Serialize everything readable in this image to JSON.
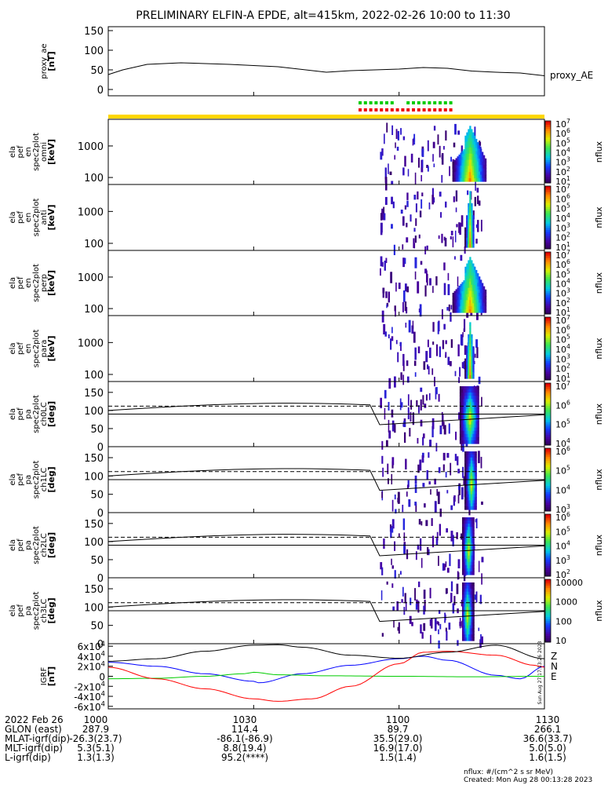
{
  "title": "PRELIMINARY ELFIN-A EPDE, alt=415km, 2022-02-26 10:00 to 11:30",
  "chart_data": [
    {
      "type": "line",
      "id": "proxy_ae",
      "ylabel": [
        "proxy_ae",
        "[nT]"
      ],
      "series_label": "proxy_AE",
      "yticks": [
        "0",
        "50",
        "100",
        "150"
      ],
      "ylim": [
        0,
        160
      ],
      "x_minutes": [
        0,
        3,
        8,
        15,
        25,
        35,
        45,
        50,
        55,
        60,
        65,
        70,
        75,
        80,
        85,
        90
      ],
      "values": [
        38,
        50,
        64,
        68,
        64,
        58,
        44,
        48,
        50,
        52,
        56,
        54,
        47,
        44,
        42,
        35
      ]
    },
    {
      "type": "heatmap",
      "id": "spec_en_omni",
      "ylabel": [
        "ela",
        "pef",
        "en",
        "spec2plot",
        "omni",
        "[keV]"
      ],
      "yticks": [
        "100",
        "1000"
      ],
      "ylog": true,
      "ylim": [
        60,
        7000
      ],
      "colorbar_label": "nflux",
      "colorbar_ticks": [
        "10^1",
        "10^2",
        "10^3",
        "10^4",
        "10^5",
        "10^6",
        "10^7"
      ],
      "blob": {
        "x_min": [
          71,
          78
        ],
        "peak_min": 74.5,
        "curve": true
      }
    },
    {
      "type": "heatmap",
      "id": "spec_en_anti",
      "ylabel": [
        "ela",
        "pef",
        "en",
        "spec2plot",
        "anti",
        "[keV]"
      ],
      "yticks": [
        "100",
        "1000"
      ],
      "ylog": true,
      "ylim": [
        60,
        7000
      ],
      "colorbar_label": "nflux",
      "colorbar_ticks": [
        "10^1",
        "10^2",
        "10^3",
        "10^4",
        "10^5",
        "10^6",
        "10^7"
      ],
      "blob": {
        "x_min": [
          73.5,
          75.5
        ],
        "peak_min": 74.5,
        "curve": false
      }
    },
    {
      "type": "heatmap",
      "id": "spec_en_perp",
      "ylabel": [
        "ela",
        "pef",
        "en",
        "spec2plot",
        "perp",
        "[keV]"
      ],
      "yticks": [
        "100",
        "1000"
      ],
      "ylog": true,
      "ylim": [
        60,
        7000
      ],
      "colorbar_label": "nflux",
      "colorbar_ticks": [
        "10^1",
        "10^2",
        "10^3",
        "10^4",
        "10^5",
        "10^6",
        "10^7"
      ],
      "blob": {
        "x_min": [
          71,
          78
        ],
        "peak_min": 74.5,
        "curve": true
      }
    },
    {
      "type": "heatmap",
      "id": "spec_en_para",
      "ylabel": [
        "ela",
        "pef",
        "en",
        "spec2plot",
        "para",
        "[keV]"
      ],
      "yticks": [
        "100",
        "1000"
      ],
      "ylog": true,
      "ylim": [
        60,
        7000
      ],
      "colorbar_label": "nflux",
      "colorbar_ticks": [
        "10^1",
        "10^2",
        "10^3",
        "10^4",
        "10^5",
        "10^6",
        "10^7"
      ],
      "blob": {
        "x_min": [
          73.5,
          75.5
        ],
        "peak_min": 74.5,
        "curve": false
      }
    },
    {
      "type": "heatmap",
      "id": "spec_pa_ch0",
      "ylabel": [
        "ela",
        "pef",
        "pa",
        "spec2plot",
        "ch0LC",
        "[deg]"
      ],
      "yticks": [
        "0",
        "50",
        "100",
        "150"
      ],
      "ylim": [
        0,
        180
      ],
      "colorbar_label": "nflux",
      "colorbar_ticks": [
        "10^4",
        "10^5",
        "10^6",
        "10^7"
      ],
      "blob": {
        "x_min": [
          72.5,
          76.5
        ],
        "peak_min": 74.5
      }
    },
    {
      "type": "heatmap",
      "id": "spec_pa_ch1",
      "ylabel": [
        "ela",
        "pef",
        "pa",
        "spec2plot",
        "ch1LC",
        "[deg]"
      ],
      "yticks": [
        "0",
        "50",
        "100",
        "150"
      ],
      "ylim": [
        0,
        180
      ],
      "colorbar_label": "nflux",
      "colorbar_ticks": [
        "10^3",
        "10^4",
        "10^5",
        "10^6"
      ],
      "blob": {
        "x_min": [
          73.5,
          76
        ],
        "peak_min": 74.8
      }
    },
    {
      "type": "heatmap",
      "id": "spec_pa_ch2",
      "ylabel": [
        "ela",
        "pef",
        "pa",
        "spec2plot",
        "ch2LC",
        "[deg]"
      ],
      "yticks": [
        "0",
        "50",
        "100",
        "150"
      ],
      "ylim": [
        0,
        180
      ],
      "colorbar_label": "nflux",
      "colorbar_ticks": [
        "10^2",
        "10^3",
        "10^4",
        "10^5",
        "10^6"
      ],
      "blob": {
        "x_min": [
          73,
          75.5
        ],
        "peak_min": 74.2
      }
    },
    {
      "type": "heatmap",
      "id": "spec_pa_ch3",
      "ylabel": [
        "ela",
        "pef",
        "pa",
        "spec2plot",
        "ch3LC",
        "[deg]"
      ],
      "yticks": [
        "0",
        "50",
        "100",
        "150"
      ],
      "ylim": [
        0,
        180
      ],
      "colorbar_label": "nflux",
      "colorbar_ticks": [
        "10",
        "100",
        "1000",
        "10000"
      ],
      "blob": {
        "x_min": [
          73,
          75.5
        ],
        "peak_min": 74.0
      }
    },
    {
      "type": "line",
      "id": "igrf",
      "ylabel": [
        "IGRF",
        "[nT]"
      ],
      "yticks": [
        "-6x10^4",
        "-4x10^4",
        "-2x10^4",
        "0",
        "2x10^4",
        "4x10^4",
        "6x10^4"
      ],
      "ylim": [
        -65000,
        65000
      ],
      "series": [
        {
          "name": "N",
          "color": "#0000ff",
          "x_minutes": [
            0,
            10,
            20,
            30,
            31,
            40,
            50,
            60,
            65,
            70,
            80,
            85,
            90
          ],
          "values": [
            28000,
            20000,
            5000,
            -10000,
            -13000,
            5000,
            22000,
            35000,
            40000,
            32000,
            2000,
            -5000,
            20000
          ]
        },
        {
          "name": "E",
          "color": "#00cc00",
          "x_minutes": [
            0,
            10,
            20,
            28,
            30,
            35,
            45,
            60,
            75,
            90
          ],
          "values": [
            -5000,
            -4000,
            0,
            5000,
            8000,
            3000,
            1000,
            0,
            -1000,
            0
          ]
        },
        {
          "name": "Z",
          "color": "#ff0000",
          "x_minutes": [
            0,
            10,
            20,
            30,
            35,
            42,
            50,
            60,
            65,
            70,
            80,
            88,
            90
          ],
          "values": [
            18000,
            -5000,
            -25000,
            -45000,
            -50000,
            -45000,
            -20000,
            25000,
            48000,
            50000,
            42000,
            22000,
            18000
          ]
        },
        {
          "name": "",
          "color": "#000000",
          "x_minutes": [
            0,
            10,
            20,
            30,
            35,
            40,
            50,
            60,
            70,
            80,
            90
          ],
          "values": [
            30000,
            35000,
            50000,
            62000,
            63000,
            58000,
            42000,
            36000,
            48000,
            62000,
            35000
          ]
        }
      ],
      "series_labels": [
        "Z",
        "N",
        "E"
      ]
    }
  ],
  "shared_x": {
    "xlim_minutes": [
      0,
      90
    ],
    "ticks": [
      {
        "label": "1000",
        "min": 0
      },
      {
        "label": "1030",
        "min": 30
      },
      {
        "label": "1100",
        "min": 60
      },
      {
        "label": "1130",
        "min": 90
      }
    ]
  },
  "annotations": {
    "side_note": "Sun Aug 27 17:13:26 2023"
  },
  "ephemeris": {
    "rows": [
      {
        "label": "2022 Feb 26",
        "v": [
          "1000",
          "1030",
          "1100",
          "1130"
        ]
      },
      {
        "label": "GLON (east)",
        "v": [
          "287.9",
          "114.4",
          "89.7",
          "266.1"
        ]
      },
      {
        "label": "MLAT-igrf(dip)",
        "v": [
          "-26.3(23.7)",
          "-86.1(-86.9)",
          "35.5(29.0)",
          "36.6(33.7)"
        ]
      },
      {
        "label": "MLT-igrf(dip)",
        "v": [
          "5.3(5.1)",
          "8.8(19.4)",
          "16.9(17.0)",
          "5.0(5.0)"
        ]
      },
      {
        "label": "L-igrf(dip)",
        "v": [
          "1.3(1.3)",
          "95.2(****)",
          "1.5(1.4)",
          "1.6(1.5)"
        ]
      }
    ]
  },
  "footer": {
    "units": "nflux: #/(cm^2 s sr MeV)",
    "created": "Created: Mon Aug 28 00:13:28 2023"
  }
}
